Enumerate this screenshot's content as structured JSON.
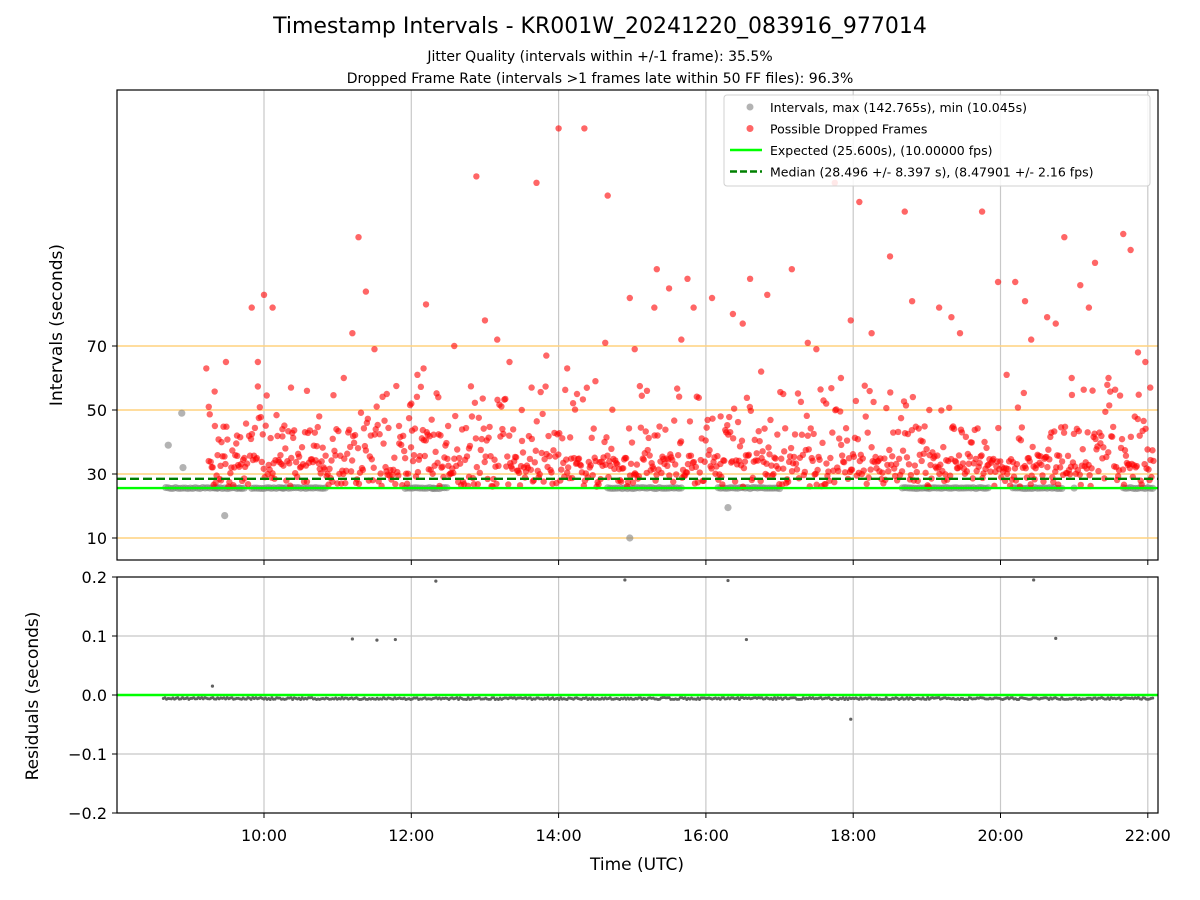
{
  "chart_data": [
    {
      "type": "scatter",
      "title": "Timestamp Intervals - KR001W_20241220_083916_977014",
      "subtitles": [
        "Jitter Quality (intervals within +/-1 frame): 35.5%",
        "Dropped Frame Rate (intervals >1 frames late within 50 FF files): 96.3%"
      ],
      "ylabel": "Intervals (seconds)",
      "xlabel": "",
      "x_ticks": [
        "10:00",
        "12:00",
        "14:00",
        "16:00",
        "18:00",
        "20:00",
        "22:00"
      ],
      "y_ticks": [
        10,
        30,
        50,
        70
      ],
      "reference_lines": [
        10,
        30,
        50,
        70
      ],
      "grid": "vertical",
      "legend_position": "top-right",
      "colors": {
        "intervals": "#808080",
        "dropped": "#ff0000",
        "expected": "#00ff00",
        "median": "#008000",
        "reference": "#ffd27f"
      },
      "legend": [
        {
          "label": "Intervals, max (142.765s), min (10.045s)",
          "marker": "circle",
          "color": "#808080"
        },
        {
          "label": "Possible Dropped Frames",
          "marker": "circle",
          "color": "#ff0000"
        },
        {
          "label": "Expected (25.600s), (10.00000 fps)",
          "marker": "line",
          "color": "#00ff00"
        },
        {
          "label": "Median (28.496 +/- 8.397 s), (8.47901 +/- 2.16 fps)",
          "marker": "dashed-line",
          "color": "#008000"
        }
      ],
      "expected": 25.6,
      "median": 28.496,
      "normal_intervals": [
        [
          "08:42",
          39
        ],
        [
          "08:53",
          49
        ],
        [
          "08:54",
          32
        ],
        [
          "09:20",
          25.6
        ],
        [
          "09:22",
          25.6
        ],
        [
          "09:28",
          17
        ],
        [
          "09:40",
          25.6
        ],
        [
          "10:15",
          25.6
        ],
        [
          "12:18",
          25.6
        ],
        [
          "14:58",
          10
        ],
        [
          "16:18",
          19.5
        ],
        [
          "19:00",
          25.6
        ],
        [
          "21:00",
          25.6
        ]
      ],
      "expected_band": [
        [
          "08:40",
          "09:45"
        ],
        [
          "09:50",
          "10:50"
        ],
        [
          "11:55",
          "12:30"
        ],
        [
          "14:40",
          "15:40"
        ],
        [
          "16:10",
          "17:00"
        ],
        [
          "18:40",
          "19:50"
        ],
        [
          "20:10",
          "20:50"
        ],
        [
          "21:40",
          "22:05"
        ]
      ],
      "dropped_frames": [
        [
          "09:13",
          63
        ],
        [
          "09:15",
          51
        ],
        [
          "09:20",
          45
        ],
        [
          "09:25",
          28
        ],
        [
          "09:29",
          65
        ],
        [
          "09:38",
          42
        ],
        [
          "09:44",
          35
        ],
        [
          "09:50",
          82
        ],
        [
          "09:55",
          65
        ],
        [
          "10:00",
          86
        ],
        [
          "10:07",
          82
        ],
        [
          "10:15",
          44
        ],
        [
          "10:22",
          57
        ],
        [
          "10:35",
          56
        ],
        [
          "10:45",
          48
        ],
        [
          "10:56",
          41
        ],
        [
          "11:05",
          60
        ],
        [
          "11:12",
          74
        ],
        [
          "11:17",
          104
        ],
        [
          "11:23",
          87
        ],
        [
          "11:30",
          69
        ],
        [
          "11:40",
          55
        ],
        [
          "11:50",
          45
        ],
        [
          "12:00",
          52
        ],
        [
          "12:05",
          61
        ],
        [
          "12:10",
          63
        ],
        [
          "12:12",
          83
        ],
        [
          "12:22",
          54
        ],
        [
          "12:30",
          45
        ],
        [
          "12:35",
          70
        ],
        [
          "12:47",
          38
        ],
        [
          "12:53",
          123
        ],
        [
          "13:00",
          78
        ],
        [
          "13:10",
          72
        ],
        [
          "13:20",
          65
        ],
        [
          "13:30",
          50
        ],
        [
          "13:38",
          57
        ],
        [
          "13:42",
          121
        ],
        [
          "13:50",
          67
        ],
        [
          "14:00",
          138
        ],
        [
          "14:07",
          63
        ],
        [
          "14:15",
          55
        ],
        [
          "14:21",
          138
        ],
        [
          "14:30",
          59
        ],
        [
          "14:38",
          71
        ],
        [
          "14:40",
          117
        ],
        [
          "14:58",
          85
        ],
        [
          "15:02",
          69
        ],
        [
          "15:12",
          56
        ],
        [
          "15:18",
          82
        ],
        [
          "15:20",
          94
        ],
        [
          "15:30",
          88
        ],
        [
          "15:40",
          72
        ],
        [
          "15:45",
          91
        ],
        [
          "15:50",
          82
        ],
        [
          "16:05",
          85
        ],
        [
          "16:12",
          48
        ],
        [
          "16:22",
          80
        ],
        [
          "16:30",
          77
        ],
        [
          "16:36",
          91
        ],
        [
          "16:45",
          62
        ],
        [
          "16:50",
          86
        ],
        [
          "17:03",
          55
        ],
        [
          "17:10",
          94
        ],
        [
          "17:23",
          71
        ],
        [
          "17:30",
          69
        ],
        [
          "17:38",
          52
        ],
        [
          "17:45",
          121
        ],
        [
          "17:50",
          60
        ],
        [
          "17:58",
          78
        ],
        [
          "18:05",
          115
        ],
        [
          "18:15",
          74
        ],
        [
          "18:30",
          98
        ],
        [
          "18:42",
          112
        ],
        [
          "18:48",
          84
        ],
        [
          "19:02",
          50
        ],
        [
          "19:10",
          82
        ],
        [
          "19:20",
          79
        ],
        [
          "19:27",
          74
        ],
        [
          "19:45",
          112
        ],
        [
          "19:58",
          90
        ],
        [
          "20:05",
          61
        ],
        [
          "20:12",
          90
        ],
        [
          "20:20",
          84
        ],
        [
          "20:25",
          72
        ],
        [
          "20:38",
          79
        ],
        [
          "20:45",
          77
        ],
        [
          "20:52",
          104
        ],
        [
          "20:58",
          60
        ],
        [
          "21:05",
          89
        ],
        [
          "21:12",
          82
        ],
        [
          "21:17",
          96
        ],
        [
          "21:28",
          60
        ],
        [
          "21:40",
          105
        ],
        [
          "21:46",
          100
        ],
        [
          "21:52",
          68
        ],
        [
          "21:58",
          65
        ],
        [
          "22:02",
          57
        ]
      ]
    },
    {
      "type": "scatter",
      "ylabel": "Residuals (seconds)",
      "xlabel": "Time (UTC)",
      "x_ticks": [
        "10:00",
        "12:00",
        "14:00",
        "16:00",
        "18:00",
        "20:00",
        "22:00"
      ],
      "y_ticks": [
        "0.2",
        "0.1",
        "0.0",
        "−0.1",
        "−0.2"
      ],
      "ylim": [
        -0.2,
        0.2
      ],
      "grid": "both",
      "zero_line_color": "#00ff00",
      "outliers": [
        [
          "09:18",
          0.015
        ],
        [
          "11:12",
          0.095
        ],
        [
          "11:32",
          0.093
        ],
        [
          "11:47",
          0.094
        ],
        [
          "12:20",
          0.193
        ],
        [
          "14:54",
          0.195
        ],
        [
          "16:18",
          0.194
        ],
        [
          "16:33",
          0.094
        ],
        [
          "17:58",
          -0.041
        ],
        [
          "20:27",
          0.195
        ],
        [
          "20:45",
          0.096
        ]
      ],
      "baseline_residual": -0.006,
      "baseline_segments": [
        [
          "08:38",
          "09:25"
        ],
        [
          "09:25",
          "22:05"
        ]
      ]
    }
  ]
}
